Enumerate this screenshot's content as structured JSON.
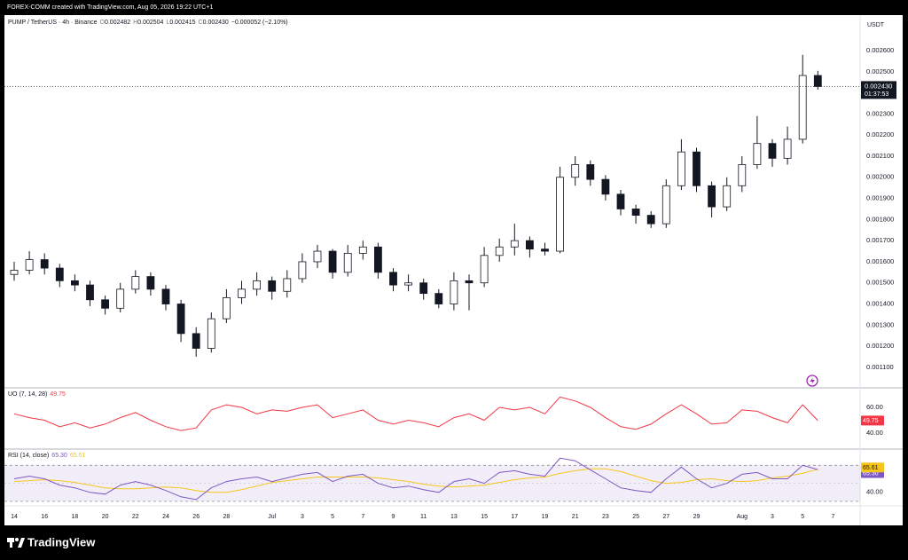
{
  "header": {
    "text": "FOREX-COMM created with TradingView.com, Aug 05, 2026 19:22 UTC+1"
  },
  "footer": {
    "brand": "TradingView"
  },
  "chart_data": [
    {
      "type": "candlestick",
      "title": "PUMP / TetherUS · 4h · Binance",
      "currency": "USDT",
      "countdown": "01:37:53",
      "ohlc_labels": [
        "O",
        "H",
        "L",
        "C"
      ],
      "change_label": "−0.000052 (−2.10%)",
      "categories": [
        "14",
        null,
        "16",
        null,
        "18",
        null,
        "20",
        null,
        "22",
        null,
        "24",
        null,
        "26",
        null,
        "28",
        null,
        null,
        "Jul",
        null,
        "3",
        null,
        "5",
        null,
        "7",
        null,
        "9",
        null,
        "11",
        null,
        "13",
        null,
        "15",
        null,
        "17",
        null,
        "19",
        null,
        "21",
        null,
        "23",
        null,
        "25",
        null,
        "27",
        null,
        "29",
        null,
        null,
        "Aug",
        null,
        "3",
        null,
        "5",
        null,
        "7"
      ],
      "open": [
        0.00154,
        0.00156,
        0.00161,
        0.00157,
        0.00151,
        0.00149,
        0.00142,
        0.00138,
        0.00147,
        0.00153,
        0.00147,
        0.0014,
        0.00126,
        0.00119,
        0.00133,
        0.00143,
        0.00147,
        0.00151,
        0.00146,
        0.00152,
        0.0016,
        0.00165,
        0.00155,
        0.00164,
        0.00167,
        0.00155,
        0.00149,
        0.0015,
        0.00145,
        0.0014,
        0.00151,
        0.0015,
        0.00163,
        0.00167,
        0.0017,
        0.00166,
        0.00165,
        0.002,
        0.00206,
        0.00199,
        0.00192,
        0.00185,
        0.00182,
        0.00178,
        0.00196,
        0.00212,
        0.00196,
        0.00186,
        0.00196,
        0.00206,
        0.00216,
        0.00209,
        0.00218,
        0.002482,
        null
      ],
      "high": [
        0.0016,
        0.00165,
        0.00164,
        0.00159,
        0.00154,
        0.00151,
        0.00144,
        0.0015,
        0.00156,
        0.00155,
        0.00149,
        0.00142,
        0.00129,
        0.00136,
        0.00147,
        0.00151,
        0.00155,
        0.00153,
        0.00156,
        0.00164,
        0.00168,
        0.00166,
        0.00168,
        0.0017,
        0.00169,
        0.00157,
        0.00154,
        0.00152,
        0.00147,
        0.00155,
        0.00154,
        0.00167,
        0.00171,
        0.00178,
        0.00172,
        0.00169,
        0.00205,
        0.0021,
        0.00208,
        0.00201,
        0.00194,
        0.00187,
        0.00184,
        0.00199,
        0.00218,
        0.00214,
        0.00198,
        0.002,
        0.0021,
        0.00229,
        0.00218,
        0.00224,
        0.00258,
        0.002504,
        null
      ],
      "low": [
        0.00151,
        0.00154,
        0.00154,
        0.00148,
        0.00146,
        0.00139,
        0.00135,
        0.00136,
        0.00145,
        0.00144,
        0.00137,
        0.00122,
        0.00115,
        0.00117,
        0.00131,
        0.0014,
        0.00144,
        0.00142,
        0.00143,
        0.0015,
        0.00157,
        0.00152,
        0.00153,
        0.00161,
        0.00152,
        0.00146,
        0.00146,
        0.00142,
        0.00138,
        0.00137,
        0.00137,
        0.00148,
        0.0016,
        0.00163,
        0.00162,
        0.00163,
        0.00164,
        0.00196,
        0.00196,
        0.00189,
        0.00182,
        0.00178,
        0.00176,
        0.00176,
        0.00194,
        0.00193,
        0.00181,
        0.00184,
        0.00193,
        0.00204,
        0.00205,
        0.00206,
        0.00216,
        0.002415,
        null
      ],
      "close": [
        0.00156,
        0.00161,
        0.00157,
        0.00151,
        0.00149,
        0.00142,
        0.00138,
        0.00147,
        0.00153,
        0.00147,
        0.0014,
        0.00126,
        0.00119,
        0.00133,
        0.00143,
        0.00147,
        0.00151,
        0.00146,
        0.00152,
        0.0016,
        0.00165,
        0.00155,
        0.00164,
        0.00167,
        0.00155,
        0.00149,
        0.0015,
        0.00145,
        0.0014,
        0.00151,
        0.0015,
        0.00163,
        0.00167,
        0.0017,
        0.00166,
        0.00165,
        0.002,
        0.00206,
        0.00199,
        0.00192,
        0.00185,
        0.00182,
        0.00178,
        0.00196,
        0.00212,
        0.00196,
        0.00186,
        0.00196,
        0.00206,
        0.00216,
        0.00209,
        0.00218,
        0.002482,
        0.00243,
        null
      ],
      "close_labels": [
        null,
        null,
        null,
        null,
        null,
        null,
        null,
        null,
        null,
        null,
        null,
        null,
        null,
        null,
        null,
        null,
        null,
        null,
        null,
        null,
        null,
        null,
        null,
        null,
        null,
        null,
        null,
        null,
        null,
        null,
        null,
        null,
        null,
        null,
        null,
        null,
        null,
        null,
        null,
        null,
        null,
        null,
        null,
        null,
        null,
        null,
        null,
        null,
        null,
        null,
        null,
        null,
        null,
        "0.002430",
        null
      ],
      "colors": {
        "up": "#ffffff",
        "down": "#131722"
      },
      "ylim": [
        0.001003,
        0.002768
      ],
      "yticks": [
        {
          "value": 0.0011,
          "label": "0.001100"
        },
        {
          "value": 0.0012,
          "label": "0.001200"
        },
        {
          "value": 0.0013,
          "label": "0.001300"
        },
        {
          "value": 0.0014,
          "label": "0.001400"
        },
        {
          "value": 0.0015,
          "label": "0.001500"
        },
        {
          "value": 0.0016,
          "label": "0.001600"
        },
        {
          "value": 0.0017,
          "label": "0.001700"
        },
        {
          "value": 0.0018,
          "label": "0.001800"
        },
        {
          "value": 0.0019,
          "label": "0.001900"
        },
        {
          "value": 0.002,
          "label": "0.002000"
        },
        {
          "value": 0.0021,
          "label": "0.002100"
        },
        {
          "value": 0.0022,
          "label": "0.002200"
        },
        {
          "value": 0.0023,
          "label": "0.002300"
        },
        {
          "value": 0.0024,
          "label": "0.002400"
        },
        {
          "value": 0.0025,
          "label": "0.002500"
        },
        {
          "value": 0.0026,
          "label": "0.002600"
        }
      ]
    },
    {
      "type": "line",
      "title": "UO (7, 14, 28)",
      "color": "#f23645",
      "values": [
        55,
        52,
        50,
        45,
        48,
        44,
        47,
        52,
        56,
        50,
        45,
        42,
        44,
        58,
        62,
        60,
        55,
        58,
        57,
        60,
        62,
        52,
        55,
        58,
        50,
        47,
        50,
        48,
        45,
        52,
        55,
        50,
        60,
        58,
        60,
        55,
        68,
        65,
        60,
        52,
        45,
        43,
        47,
        55,
        62,
        55,
        47,
        48,
        58,
        57,
        52,
        48,
        62,
        49.75,
        null
      ],
      "ylim": [
        27.6,
        75.2
      ],
      "yticks": [
        {
          "value": 60,
          "label": "60.00"
        },
        {
          "value": 40,
          "label": "40.00"
        }
      ]
    },
    {
      "type": "line",
      "title": "RSI (14, close)",
      "series": [
        {
          "color": "#7e57c2",
          "values": [
            55,
            58,
            55,
            48,
            45,
            40,
            38,
            48,
            52,
            48,
            42,
            35,
            32,
            45,
            52,
            55,
            57,
            52,
            56,
            60,
            62,
            52,
            58,
            60,
            50,
            45,
            47,
            43,
            40,
            52,
            55,
            50,
            62,
            64,
            60,
            58,
            78,
            75,
            65,
            55,
            45,
            42,
            40,
            55,
            68,
            55,
            45,
            50,
            60,
            62,
            55,
            55,
            70,
            65.3,
            null
          ],
          "value_labels": [
            null,
            null,
            null,
            null,
            null,
            null,
            null,
            null,
            null,
            null,
            null,
            null,
            null,
            null,
            null,
            null,
            null,
            null,
            null,
            null,
            null,
            null,
            null,
            null,
            null,
            null,
            null,
            null,
            null,
            null,
            null,
            null,
            null,
            null,
            null,
            null,
            null,
            null,
            null,
            null,
            null,
            null,
            null,
            null,
            null,
            null,
            null,
            null,
            null,
            null,
            null,
            null,
            null,
            "65.30",
            null
          ]
        },
        {
          "color": "#f7c51a",
          "values": [
            52,
            53,
            54,
            53,
            51,
            48,
            45,
            44,
            44,
            45,
            46,
            45,
            42,
            40,
            40,
            43,
            47,
            51,
            53,
            55,
            57,
            57,
            57,
            57,
            56,
            54,
            52,
            49,
            47,
            46,
            47,
            48,
            51,
            54,
            56,
            57,
            61,
            64,
            66,
            66,
            63,
            58,
            53,
            50,
            51,
            54,
            55,
            53,
            52,
            53,
            56,
            58,
            61,
            65.61,
            null
          ]
        }
      ],
      "band": [
        30,
        70
      ],
      "midline": 50,
      "ylim": [
        25,
        88
      ],
      "yticks": [
        {
          "value": 40,
          "label": "40.00"
        }
      ]
    }
  ]
}
